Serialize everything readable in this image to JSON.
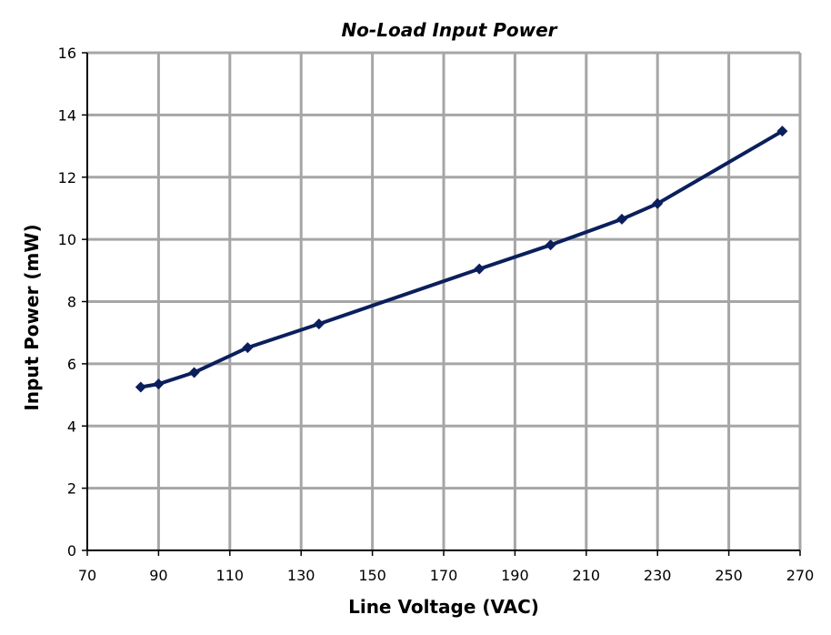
{
  "chart_data": {
    "type": "line",
    "title": "No-Load Input Power",
    "xlabel": "Line Voltage (VAC)",
    "ylabel": "Input Power (mW)",
    "xlim": [
      70,
      270
    ],
    "ylim": [
      0,
      16
    ],
    "xticks": [
      70,
      90,
      110,
      130,
      150,
      170,
      190,
      210,
      230,
      250,
      270
    ],
    "yticks": [
      0,
      2,
      4,
      6,
      8,
      10,
      12,
      14,
      16
    ],
    "grid": true,
    "legend": "none",
    "marker": "diamond",
    "colors": {
      "series": "#0b1f5c",
      "grid": "#a6a6a6",
      "axis": "#000000"
    },
    "series": [
      {
        "x": [
          85,
          90,
          100,
          115,
          135,
          180,
          200,
          220,
          230,
          265
        ],
        "y": [
          5.25,
          5.35,
          5.72,
          6.52,
          7.28,
          9.05,
          9.82,
          10.65,
          11.15,
          13.48
        ]
      }
    ]
  }
}
